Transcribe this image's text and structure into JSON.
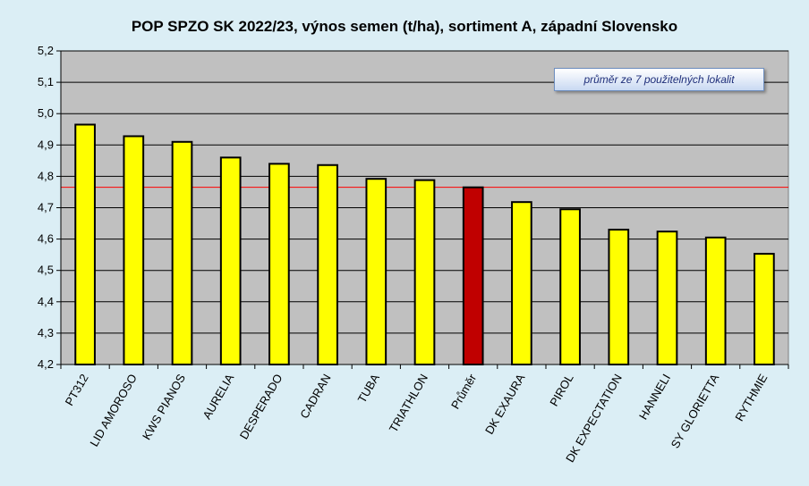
{
  "chart_data": {
    "type": "bar",
    "title": "POP SPZO SK 2022/23, výnos semen (t/ha), sortiment A, západní Slovensko",
    "annotation": "průměr ze 7 použitelných lokalit",
    "categories": [
      "PT312",
      "LID AMOROSO",
      "KWS PIANOS",
      "AURELIA",
      "DESPERADO",
      "CADRAN",
      "TUBA",
      "TRIATHLON",
      "Průměr",
      "DK EXAURA",
      "PIROL",
      "DK EXPECTATION",
      "HANNELI",
      "SY GLORIETTA",
      "RYTHMIE"
    ],
    "values": [
      4.965,
      4.928,
      4.91,
      4.86,
      4.84,
      4.836,
      4.792,
      4.788,
      4.765,
      4.718,
      4.695,
      4.63,
      4.624,
      4.605,
      4.553
    ],
    "ylim": [
      4.2,
      5.2
    ],
    "yticks": [
      "4,2",
      "4,3",
      "4,4",
      "4,5",
      "4,6",
      "4,7",
      "4,8",
      "4,9",
      "5,0",
      "5,1",
      "5,2"
    ],
    "reference_line": 4.765,
    "grid": true,
    "colors": {
      "bar": "#ffff00",
      "average_bar": "#c00000",
      "plot_background": "#c0c0c0",
      "reference_line": "#ff0000"
    }
  }
}
